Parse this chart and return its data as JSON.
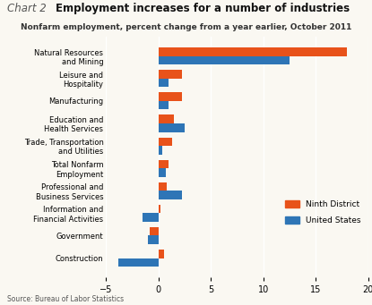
{
  "title_prefix": "Chart 2",
  "title": "Employment increases for a number of industries",
  "subtitle": "Nonfarm employment, percent change from a year earlier, October 2011",
  "source": "Source: Bureau of Labor Statistics",
  "categories": [
    "Natural Resources\nand Mining",
    "Leisure and\nHospitality",
    "Manufacturing",
    "Education and\nHealth Services",
    "Trade, Transportation\nand Utilities",
    "Total Nonfarm\nEmployment",
    "Professional and\nBusiness Services",
    "Information and\nFinancial Activities",
    "Government",
    "Construction"
  ],
  "ninth_district": [
    18.0,
    2.2,
    2.2,
    1.5,
    1.3,
    1.0,
    0.8,
    0.2,
    -0.8,
    0.5
  ],
  "united_states": [
    12.5,
    1.0,
    1.0,
    2.5,
    0.4,
    0.7,
    2.2,
    -1.5,
    -1.0,
    -3.8
  ],
  "ninth_color": "#E8521A",
  "us_color": "#2E75B6",
  "background_color": "#FAF8F2",
  "xlim": [
    -5,
    20
  ],
  "xticks": [
    -5,
    0,
    5,
    10,
    15,
    20
  ],
  "bar_height": 0.38,
  "legend_labels": [
    "Ninth District",
    "United States"
  ]
}
